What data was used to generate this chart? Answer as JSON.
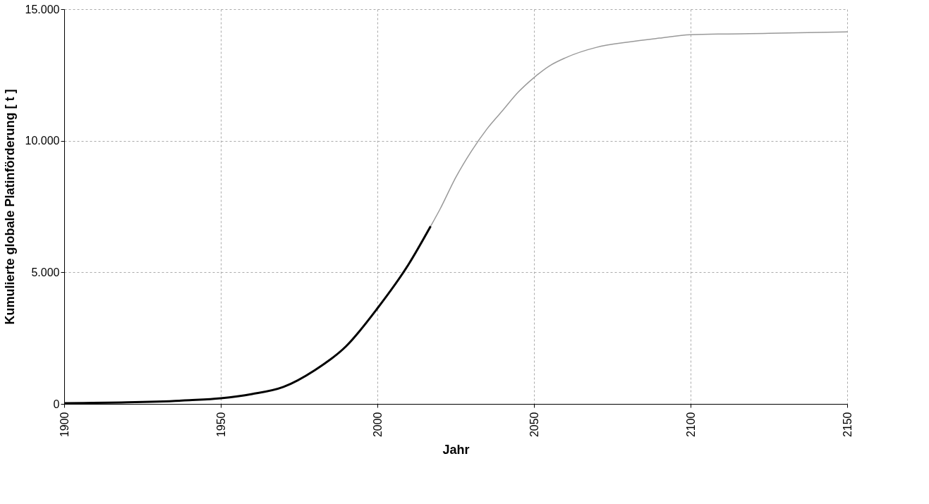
{
  "chart_data": {
    "type": "line",
    "xlabel": "Jahr",
    "ylabel": "Kumulierte globale Platinförderung [ t ]",
    "xlim": [
      1900,
      2150
    ],
    "xticks": [
      1900,
      1950,
      2000,
      2050,
      2100,
      2150
    ],
    "ylim": [
      0,
      15000
    ],
    "yticks": [
      {
        "value": 0,
        "label": "0"
      },
      {
        "value": 5000,
        "label": "5.000"
      },
      {
        "value": 10000,
        "label": "10.000"
      },
      {
        "value": 15000,
        "label": "15.000"
      }
    ],
    "grid": true,
    "marker": "none",
    "line_style": "solid",
    "series": [
      {
        "color": "#999999",
        "x": [
          1900,
          1920,
          1940,
          1950,
          1960,
          1970,
          1980,
          1990,
          2000,
          2010,
          2017,
          2020,
          2025,
          2030,
          2035,
          2040,
          2045,
          2050,
          2055,
          2060,
          2070,
          2080,
          2090,
          2100,
          2125,
          2150
        ],
        "values": [
          30,
          60,
          140,
          215,
          375,
          645,
          1280,
          2190,
          3630,
          5310,
          6750,
          7400,
          8600,
          9600,
          10450,
          11150,
          11850,
          12400,
          12850,
          13150,
          13550,
          13750,
          13900,
          14030,
          14080,
          14140
        ]
      },
      {
        "color": "#000000",
        "x": [
          1900,
          1920,
          1940,
          1950,
          1960,
          1970,
          1980,
          1990,
          2000,
          2010,
          2017
        ],
        "values": [
          30,
          60,
          140,
          215,
          375,
          645,
          1280,
          2190,
          3630,
          5310,
          6750
        ]
      }
    ]
  }
}
